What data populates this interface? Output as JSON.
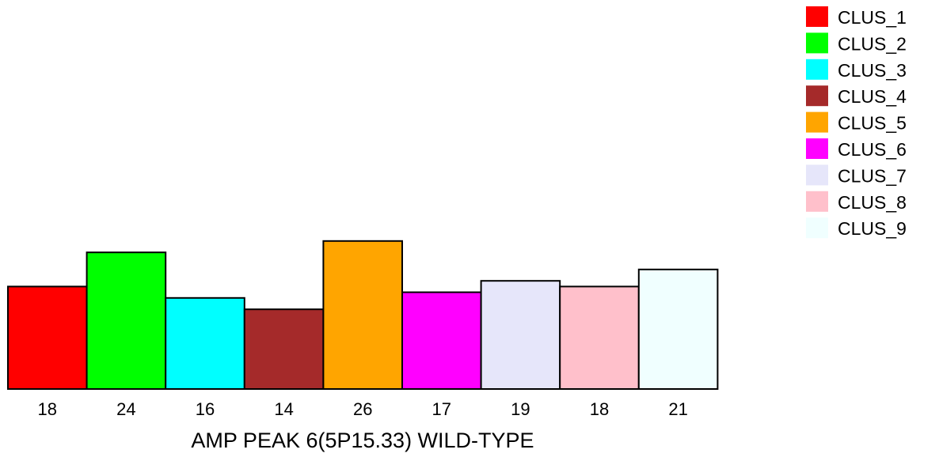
{
  "chart_data": {
    "type": "bar",
    "xlabel": "AMP PEAK  6(5P15.33) WILD-TYPE",
    "categories": [
      "CLUS_1",
      "CLUS_2",
      "CLUS_3",
      "CLUS_4",
      "CLUS_5",
      "CLUS_6",
      "CLUS_7",
      "CLUS_8",
      "CLUS_9"
    ],
    "values": [
      18,
      24,
      16,
      14,
      26,
      17,
      19,
      18,
      21
    ],
    "colors": [
      "#ff0000",
      "#00ff00",
      "#00ffff",
      "#a52a2a",
      "#ffa500",
      "#ff00ff",
      "#e6e6fa",
      "#ffc0cb",
      "#f0ffff"
    ],
    "legend": {
      "placement": "top-right",
      "entries": [
        "CLUS_1",
        "CLUS_2",
        "CLUS_3",
        "CLUS_4",
        "CLUS_5",
        "CLUS_6",
        "CLUS_7",
        "CLUS_8",
        "CLUS_9"
      ]
    },
    "grid": false
  }
}
